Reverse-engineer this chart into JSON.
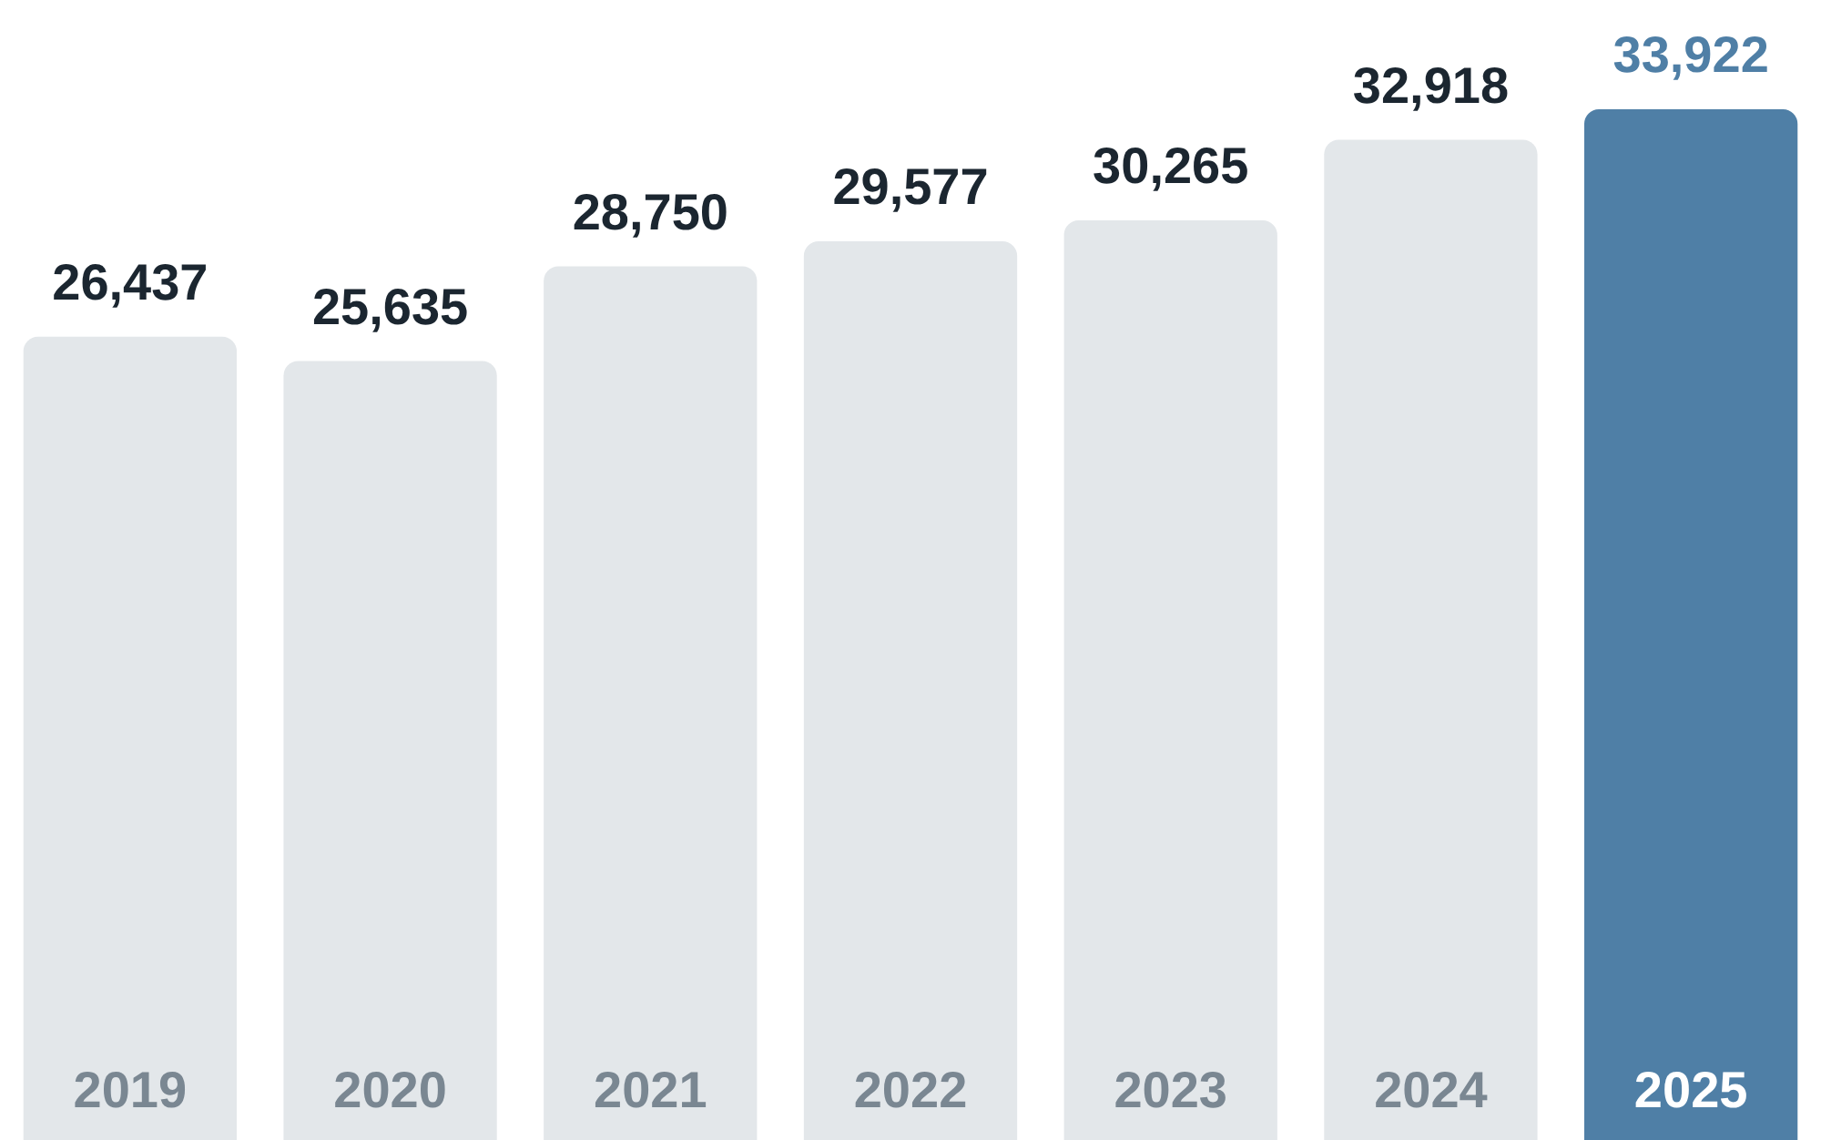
{
  "chart_data": {
    "type": "bar",
    "categories": [
      "2019",
      "2020",
      "2021",
      "2022",
      "2023",
      "2024",
      "2025"
    ],
    "values": [
      26437,
      25635,
      28750,
      29577,
      30265,
      32918,
      33922
    ],
    "colors": [
      "#e3e7ea",
      "#e3e7ea",
      "#e3e7ea",
      "#e3e7ea",
      "#e3e7ea",
      "#e3e7ea",
      "#4f7fa6"
    ],
    "value_labels": [
      "26,437",
      "25,635",
      "28,750",
      "29,577",
      "30,265",
      "32,918",
      "33,922"
    ],
    "legend": false
  }
}
